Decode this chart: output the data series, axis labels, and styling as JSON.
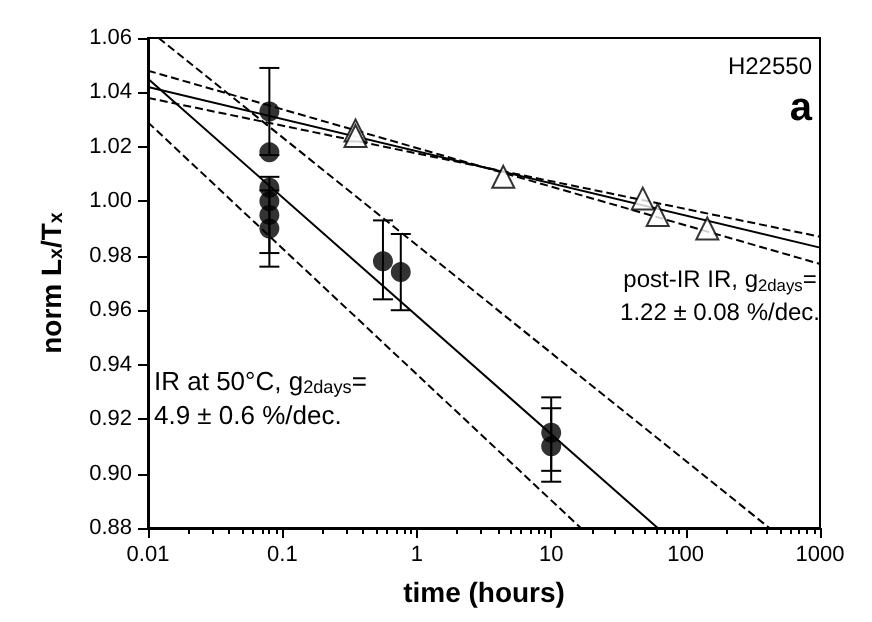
{
  "chart_data": {
    "type": "scatter",
    "xlabel": "time (hours)",
    "ylabel": "norm L$_{x}$/T$_{x}$",
    "log": "x",
    "xlim": [
      0.01,
      1000
    ],
    "xticks": [
      0.01,
      0.1,
      1,
      10,
      100,
      1000
    ],
    "ylim": [
      0.88,
      1.06
    ],
    "yticks": [
      {
        "value": 0.88,
        "label": "0.88"
      },
      {
        "value": 0.9,
        "label": "0.90"
      },
      {
        "value": 0.92,
        "label": "0.92"
      },
      {
        "value": 0.94,
        "label": "0.94"
      },
      {
        "value": 0.96,
        "label": "0.96"
      },
      {
        "value": 0.98,
        "label": "0.98"
      },
      {
        "value": 1,
        "label": "1.00"
      },
      {
        "value": 1.02,
        "label": "1.02"
      },
      {
        "value": 1.04,
        "label": "1.04"
      },
      {
        "value": 1.06,
        "label": "1.06"
      }
    ],
    "grid": false,
    "annotations": [
      "H22550",
      "a",
      "post-IR IR, g$_{2days}$=",
      "1.22 ± 0.08 %/dec.",
      "IR at 50°C, g$_{2days}$=",
      "4.9 ± 0.6 %/dec."
    ],
    "series": [
      {
        "marker": "circle",
        "color": "#000000",
        "x": [
          0.08,
          0.08,
          0.08,
          0.08,
          0.08,
          0.08,
          0.56,
          0.76,
          10,
          10
        ],
        "values": [
          1.033,
          1.018,
          1.005,
          1.0,
          0.995,
          0.99,
          0.978,
          0.974,
          0.915,
          0.91
        ],
        "errors": [
          [
            1.017,
            1.049
          ],
          null,
          null,
          null,
          [
            0.981,
            1.009
          ],
          [
            0.976,
            1.004
          ],
          [
            0.964,
            0.993
          ],
          [
            0.96,
            0.988
          ],
          [
            0.901,
            0.928
          ],
          [
            0.897,
            0.924
          ]
        ]
      },
      {
        "marker": "triangle",
        "color": "#000000",
        "x": [
          0.35,
          0.35,
          4.4,
          48,
          62,
          145
        ],
        "values": [
          1.026,
          1.024,
          1.009,
          1.001,
          0.995,
          0.99
        ]
      },
      {
        "type": "line",
        "marker": "none",
        "line_style": "solid",
        "color": "#000000",
        "x": [
          0.01,
          62
        ],
        "values": [
          1.045,
          0.88
        ]
      },
      {
        "type": "line",
        "marker": "none",
        "line_style": "dashed",
        "color": "#000000",
        "x": [
          0.012,
          420
        ],
        "values": [
          1.06,
          0.88
        ]
      },
      {
        "type": "line",
        "marker": "none",
        "line_style": "dashed",
        "color": "#000000",
        "x": [
          0.01,
          16.6
        ],
        "values": [
          1.029,
          0.88
        ]
      },
      {
        "type": "line",
        "marker": "none",
        "line_style": "solid",
        "color": "#000000",
        "x": [
          0.01,
          1000
        ],
        "values": [
          1.042,
          0.983
        ]
      },
      {
        "type": "line",
        "marker": "none",
        "line_style": "dashed",
        "color": "#000000",
        "x": [
          0.01,
          1000
        ],
        "values": [
          1.038,
          0.987
        ]
      },
      {
        "type": "line",
        "marker": "none",
        "line_style": "dashed",
        "color": "#000000",
        "x": [
          0.01,
          1000
        ],
        "values": [
          1.048,
          0.977
        ]
      }
    ]
  }
}
